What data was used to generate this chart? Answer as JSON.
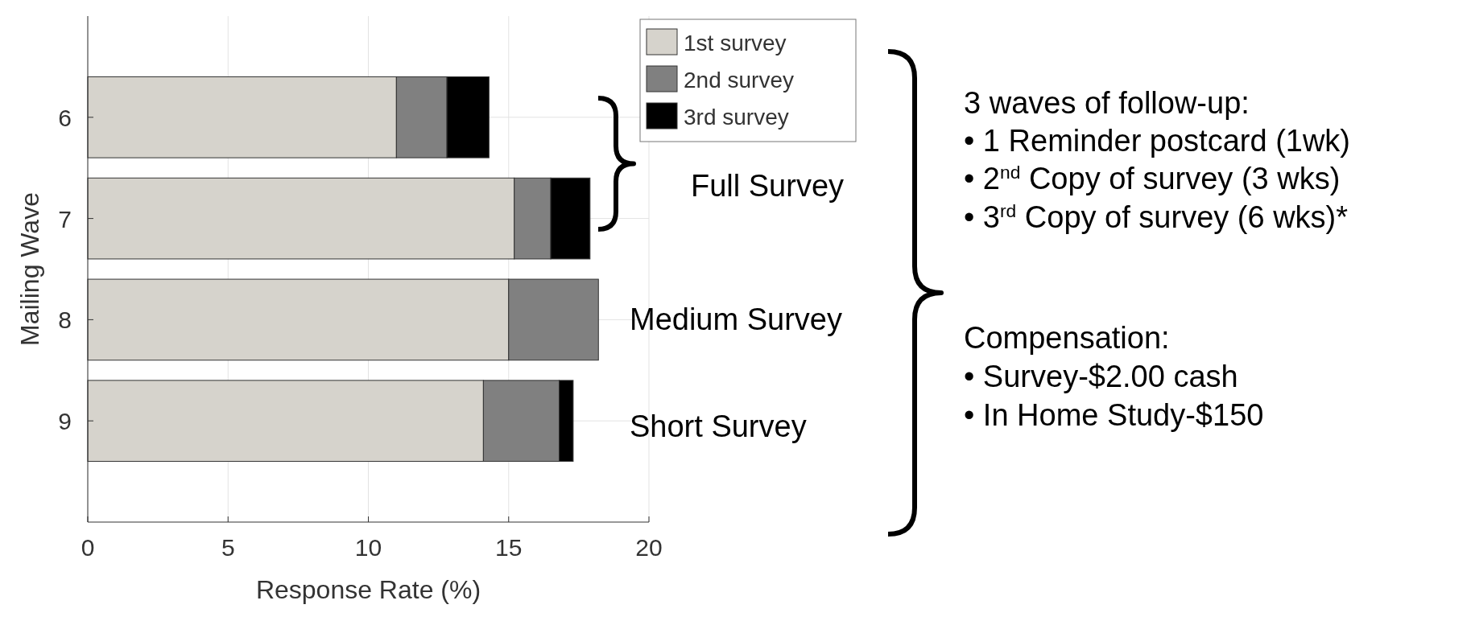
{
  "chart_data": {
    "type": "bar",
    "orientation": "horizontal",
    "stacked": true,
    "xlabel": "Response Rate (%)",
    "ylabel": "Mailing Wave",
    "categories": [
      "6",
      "7",
      "8",
      "9"
    ],
    "series": [
      {
        "name": "1st survey",
        "color": "#d6d3cc",
        "values": [
          11.0,
          15.2,
          15.0,
          14.1
        ]
      },
      {
        "name": "2nd survey",
        "color": "#808080",
        "values": [
          1.8,
          1.3,
          3.2,
          2.7
        ]
      },
      {
        "name": "3rd survey",
        "color": "#000000",
        "values": [
          1.5,
          1.4,
          0,
          0.5
        ]
      }
    ],
    "xlim": [
      0,
      20
    ],
    "xticks": [
      0,
      5,
      10,
      15,
      20
    ],
    "grid": true,
    "legend": "top right",
    "annotations": [
      "Full Survey",
      "Medium Survey",
      "Short Survey",
      "3 waves of follow-up:",
      "•  1 Reminder postcard (1wk)",
      "•  2$^{nd}$ Copy of survey (3 wks)",
      "•  3$^{rd}$ Copy of survey (6 wks)*",
      "Compensation:",
      "•  Survey-$2.00 cash",
      "•  In Home Study-$150"
    ]
  }
}
